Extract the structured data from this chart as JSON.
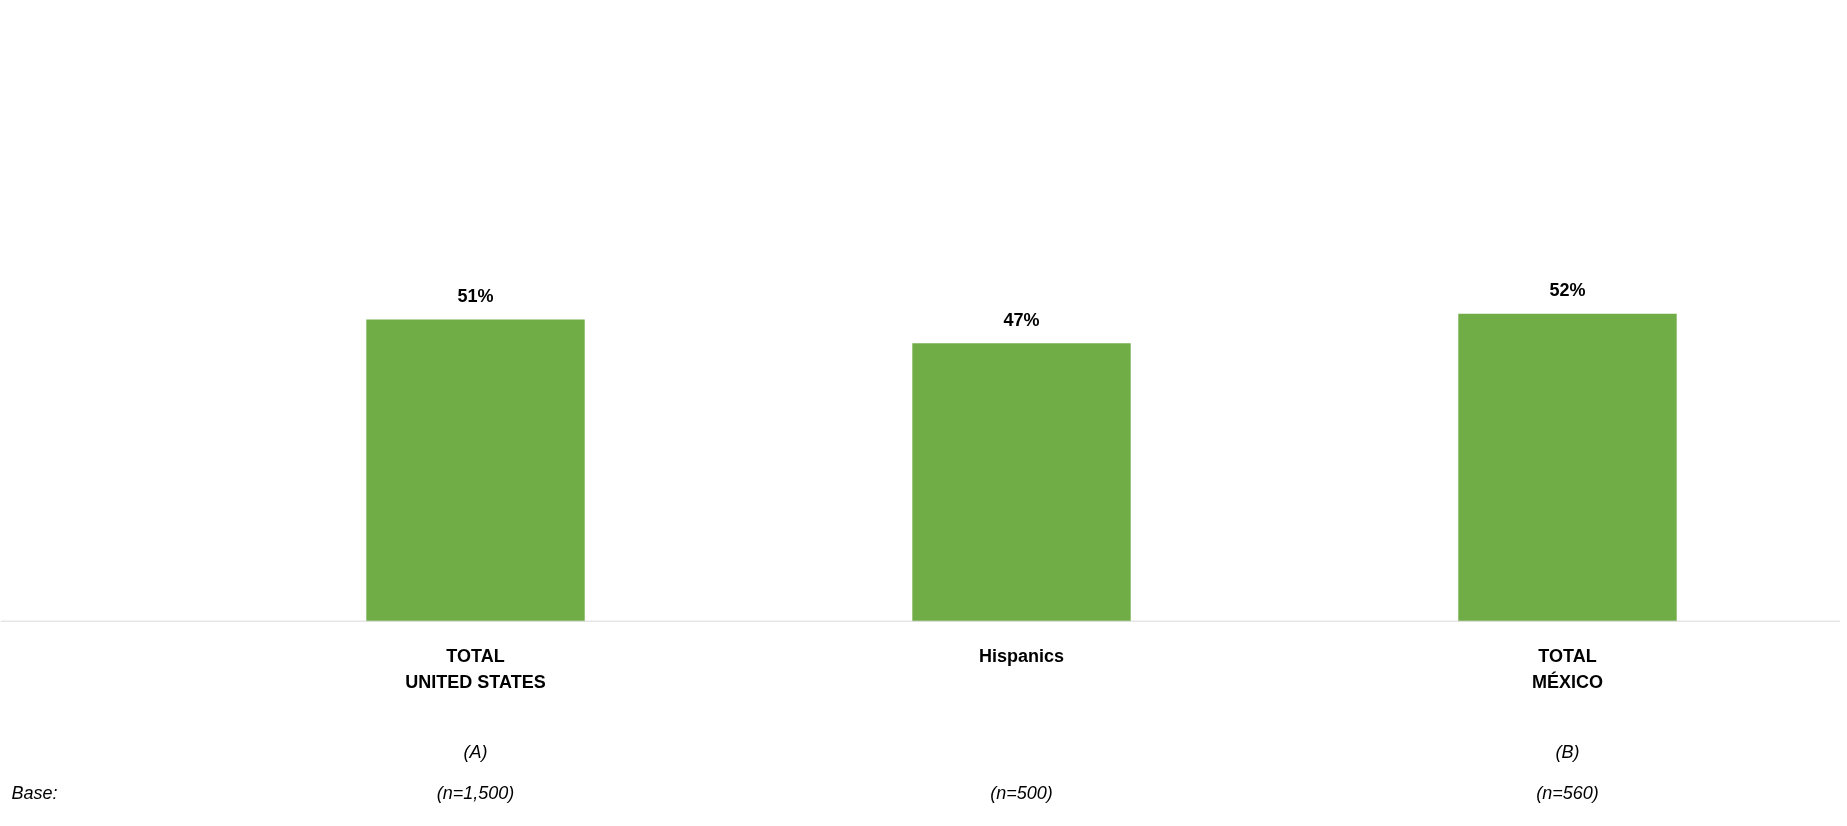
{
  "chart_data": {
    "type": "bar",
    "categories": [
      "TOTAL\nUNITED STATES",
      "Hispanics",
      "TOTAL\nMÉXICO"
    ],
    "values": [
      51,
      47,
      52
    ],
    "value_labels": [
      "51%",
      "47%",
      "52%"
    ],
    "color": "#70ad47",
    "grid": false,
    "annotations": [
      "(A)",
      "(n=1,500)",
      "(n=500)",
      "(B)",
      "(n=560)",
      "Base:"
    ]
  }
}
